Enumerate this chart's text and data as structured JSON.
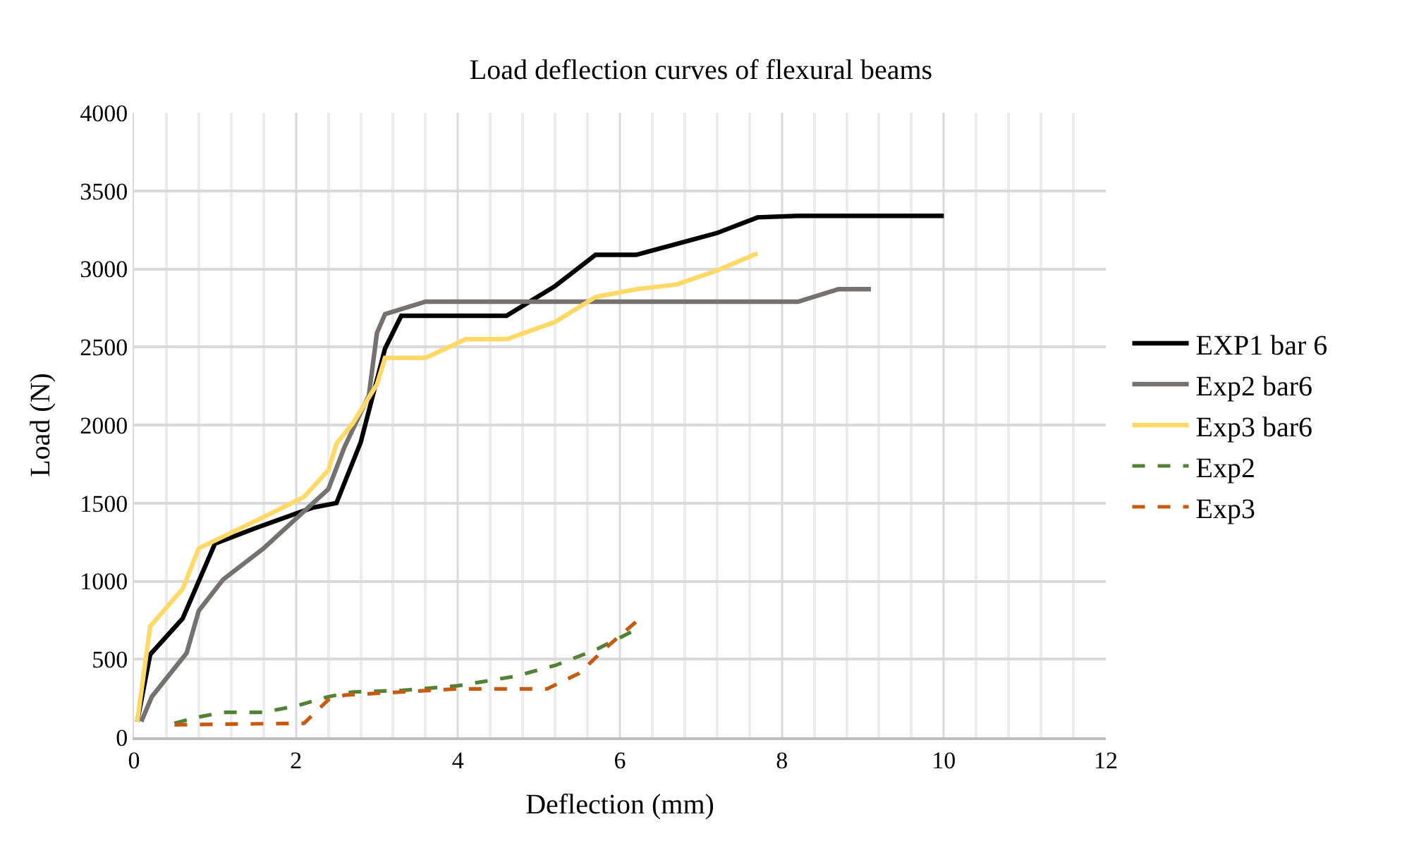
{
  "chart_data": {
    "type": "line",
    "title": "Load deflection curves of flexural beams",
    "xlabel": "Deflection (mm)",
    "ylabel": "Load (N)",
    "xlim": [
      0,
      12
    ],
    "xticks": [
      0,
      2,
      4,
      6,
      8,
      10,
      12
    ],
    "ylim": [
      0,
      4000
    ],
    "yticks": [
      0,
      500,
      1000,
      1500,
      2000,
      2500,
      3000,
      3500,
      4000
    ],
    "grid": true,
    "legend": "right",
    "series": [
      {
        "name": "EXP1 bar 6",
        "color": "#000000",
        "line_style": "solid",
        "x": [
          0.04,
          0.2,
          0.6,
          1.0,
          1.5,
          2.2,
          2.5,
          2.8,
          3.1,
          3.3,
          4.6,
          5.2,
          5.7,
          6.2,
          6.7,
          7.2,
          7.7,
          8.2,
          10.0
        ],
        "values": [
          100,
          530,
          760,
          1240,
          1340,
          1470,
          1500,
          1890,
          2490,
          2700,
          2700,
          2890,
          3090,
          3090,
          3160,
          3230,
          3330,
          3340,
          3340
        ]
      },
      {
        "name": "Exp2 bar6",
        "color": "#767171",
        "line_style": "solid",
        "x": [
          0.09,
          0.22,
          0.65,
          0.8,
          1.1,
          1.6,
          2.4,
          2.6,
          2.9,
          3.0,
          3.1,
          3.6,
          8.2,
          8.7,
          9.1
        ],
        "values": [
          100,
          260,
          540,
          810,
          1010,
          1210,
          1590,
          1860,
          2190,
          2590,
          2710,
          2790,
          2790,
          2870,
          2870
        ]
      },
      {
        "name": "Exp3 bar6",
        "color": "#ffd966",
        "line_style": "solid",
        "x": [
          0.04,
          0.2,
          0.6,
          0.8,
          1.0,
          1.6,
          2.1,
          2.4,
          2.5,
          2.7,
          3.0,
          3.1,
          3.6,
          4.1,
          4.6,
          5.2,
          5.7,
          6.2,
          6.7,
          7.2,
          7.7
        ],
        "values": [
          100,
          710,
          950,
          1210,
          1260,
          1410,
          1540,
          1710,
          1880,
          2010,
          2260,
          2430,
          2430,
          2550,
          2550,
          2660,
          2820,
          2870,
          2900,
          2990,
          3100
        ]
      },
      {
        "name": "Exp2",
        "color": "#548235",
        "line_style": "dashed",
        "x": [
          0.5,
          0.8,
          1.1,
          1.6,
          2.0,
          2.4,
          2.7,
          3.3,
          4.0,
          4.7,
          5.2,
          5.7,
          6.2
        ],
        "values": [
          90,
          130,
          160,
          160,
          200,
          260,
          290,
          300,
          330,
          390,
          460,
          560,
          690
        ]
      },
      {
        "name": "Exp3",
        "color": "#c55a11",
        "line_style": "dashed",
        "x": [
          0.5,
          2.1,
          2.4,
          2.6,
          3.3,
          4.0,
          5.1,
          5.5,
          5.8,
          6.2
        ],
        "values": [
          80,
          90,
          240,
          270,
          290,
          310,
          310,
          410,
          560,
          740
        ]
      }
    ]
  }
}
